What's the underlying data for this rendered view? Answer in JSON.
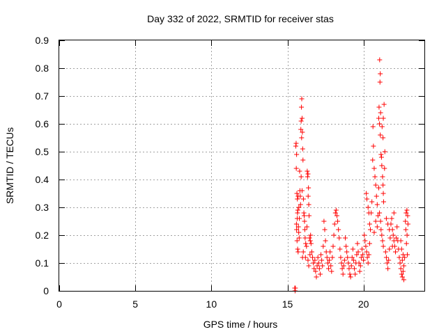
{
  "chart_data": {
    "type": "scatter",
    "title": "Day 332 of 2022, SRMTID for receiver stas",
    "xlabel": "GPS time / hours",
    "ylabel": "SRMTID / TECUs",
    "xlim": [
      0,
      24
    ],
    "ylim": [
      0,
      0.9
    ],
    "x_ticks": [
      0,
      5,
      10,
      15,
      20
    ],
    "x_tick_labels": [
      "0",
      "5",
      "10",
      "15",
      "20"
    ],
    "y_ticks": [
      0,
      0.1,
      0.2,
      0.3,
      0.4,
      0.5,
      0.6,
      0.7,
      0.8,
      0.9
    ],
    "y_tick_labels": [
      "0",
      "0.1",
      "0.2",
      "0.3",
      "0.4",
      "0.5",
      "0.6",
      "0.7",
      "0.8",
      "0.9"
    ],
    "grid": true,
    "marker": "+",
    "color": "#ff0000",
    "series": [
      {
        "name": "stas",
        "points": [
          [
            15.48,
            0.01
          ],
          [
            15.5,
            0.0
          ],
          [
            15.52,
            0.01
          ],
          [
            15.55,
            0.52
          ],
          [
            15.57,
            0.53
          ],
          [
            15.6,
            0.49
          ],
          [
            15.58,
            0.44
          ],
          [
            15.62,
            0.35
          ],
          [
            15.65,
            0.33
          ],
          [
            15.68,
            0.29
          ],
          [
            15.7,
            0.34
          ],
          [
            15.66,
            0.28
          ],
          [
            15.72,
            0.23
          ],
          [
            15.6,
            0.22
          ],
          [
            15.75,
            0.3
          ],
          [
            15.78,
            0.26
          ],
          [
            15.8,
            0.43
          ],
          [
            15.63,
            0.18
          ],
          [
            15.67,
            0.15
          ],
          [
            15.7,
            0.14
          ],
          [
            15.74,
            0.21
          ],
          [
            15.77,
            0.19
          ],
          [
            15.82,
            0.36
          ],
          [
            15.84,
            0.34
          ],
          [
            15.86,
            0.31
          ],
          [
            15.59,
            0.24
          ],
          [
            15.64,
            0.26
          ],
          [
            15.88,
            0.58
          ],
          [
            15.9,
            0.61
          ],
          [
            15.92,
            0.66
          ],
          [
            15.94,
            0.69
          ],
          [
            15.96,
            0.62
          ],
          [
            15.93,
            0.55
          ],
          [
            15.98,
            0.57
          ],
          [
            16.0,
            0.51
          ],
          [
            15.9,
            0.41
          ],
          [
            15.96,
            0.36
          ],
          [
            16.02,
            0.47
          ],
          [
            16.05,
            0.33
          ],
          [
            16.08,
            0.28
          ],
          [
            16.1,
            0.27
          ],
          [
            16.12,
            0.25
          ],
          [
            16.14,
            0.22
          ],
          [
            16.16,
            0.19
          ],
          [
            16.2,
            0.17
          ],
          [
            16.04,
            0.14
          ],
          [
            15.99,
            0.12
          ],
          [
            16.18,
            0.12
          ],
          [
            16.3,
            0.43
          ],
          [
            16.32,
            0.41
          ],
          [
            16.35,
            0.42
          ],
          [
            16.38,
            0.37
          ],
          [
            16.36,
            0.34
          ],
          [
            16.4,
            0.31
          ],
          [
            16.42,
            0.27
          ],
          [
            16.28,
            0.23
          ],
          [
            16.25,
            0.16
          ],
          [
            16.45,
            0.19
          ],
          [
            16.48,
            0.13
          ],
          [
            16.5,
            0.18
          ],
          [
            16.52,
            0.2
          ],
          [
            16.55,
            0.17
          ],
          [
            16.6,
            0.14
          ],
          [
            16.65,
            0.12
          ],
          [
            16.7,
            0.1
          ],
          [
            16.4,
            0.09
          ],
          [
            16.35,
            0.11
          ],
          [
            16.75,
            0.08
          ],
          [
            16.8,
            0.11
          ],
          [
            16.85,
            0.07
          ],
          [
            16.9,
            0.05
          ],
          [
            16.95,
            0.09
          ],
          [
            17.0,
            0.12
          ],
          [
            17.05,
            0.1
          ],
          [
            17.1,
            0.08
          ],
          [
            17.15,
            0.06
          ],
          [
            17.2,
            0.13
          ],
          [
            17.25,
            0.11
          ],
          [
            17.3,
            0.09
          ],
          [
            17.35,
            0.16
          ],
          [
            17.4,
            0.25
          ],
          [
            17.45,
            0.22
          ],
          [
            17.5,
            0.18
          ],
          [
            17.55,
            0.14
          ],
          [
            17.6,
            0.12
          ],
          [
            17.65,
            0.1
          ],
          [
            17.7,
            0.08
          ],
          [
            17.75,
            0.11
          ],
          [
            17.8,
            0.14
          ],
          [
            17.85,
            0.09
          ],
          [
            17.9,
            0.07
          ],
          [
            17.95,
            0.12
          ],
          [
            18.0,
            0.16
          ],
          [
            18.05,
            0.2
          ],
          [
            18.1,
            0.24
          ],
          [
            18.15,
            0.28
          ],
          [
            18.2,
            0.29
          ],
          [
            18.25,
            0.27
          ],
          [
            18.3,
            0.25
          ],
          [
            18.35,
            0.22
          ],
          [
            18.4,
            0.19
          ],
          [
            18.45,
            0.15
          ],
          [
            18.5,
            0.12
          ],
          [
            18.55,
            0.1
          ],
          [
            18.6,
            0.08
          ],
          [
            18.65,
            0.06
          ],
          [
            18.7,
            0.09
          ],
          [
            18.75,
            0.11
          ],
          [
            18.8,
            0.19
          ],
          [
            18.85,
            0.16
          ],
          [
            18.9,
            0.14
          ],
          [
            18.95,
            0.12
          ],
          [
            19.0,
            0.1
          ],
          [
            19.05,
            0.08
          ],
          [
            19.1,
            0.06
          ],
          [
            19.15,
            0.05
          ],
          [
            19.2,
            0.09
          ],
          [
            19.25,
            0.12
          ],
          [
            19.3,
            0.15
          ],
          [
            19.35,
            0.11
          ],
          [
            19.4,
            0.08
          ],
          [
            19.45,
            0.06
          ],
          [
            19.5,
            0.1
          ],
          [
            19.55,
            0.13
          ],
          [
            19.6,
            0.17
          ],
          [
            19.65,
            0.14
          ],
          [
            19.7,
            0.1
          ],
          [
            19.75,
            0.07
          ],
          [
            19.8,
            0.09
          ],
          [
            19.85,
            0.12
          ],
          [
            19.9,
            0.15
          ],
          [
            19.95,
            0.13
          ],
          [
            20.0,
            0.11
          ],
          [
            20.05,
            0.2
          ],
          [
            20.1,
            0.18
          ],
          [
            20.15,
            0.16
          ],
          [
            20.2,
            0.14
          ],
          [
            20.25,
            0.12
          ],
          [
            20.3,
            0.1
          ],
          [
            20.35,
            0.13
          ],
          [
            20.4,
            0.17
          ],
          [
            20.18,
            0.35
          ],
          [
            20.22,
            0.33
          ],
          [
            20.3,
            0.3
          ],
          [
            20.35,
            0.28
          ],
          [
            20.4,
            0.24
          ],
          [
            20.45,
            0.22
          ],
          [
            20.5,
            0.28
          ],
          [
            20.55,
            0.32
          ],
          [
            20.6,
            0.47
          ],
          [
            20.65,
            0.52
          ],
          [
            20.62,
            0.59
          ],
          [
            20.7,
            0.44
          ],
          [
            20.75,
            0.41
          ],
          [
            20.8,
            0.38
          ],
          [
            20.85,
            0.34
          ],
          [
            20.9,
            0.31
          ],
          [
            20.95,
            0.27
          ],
          [
            20.7,
            0.21
          ],
          [
            20.8,
            0.25
          ],
          [
            20.9,
            0.23
          ],
          [
            21.0,
            0.62
          ],
          [
            21.05,
            0.6
          ],
          [
            21.02,
            0.66
          ],
          [
            21.1,
            0.56
          ],
          [
            21.12,
            0.64
          ],
          [
            21.08,
            0.75
          ],
          [
            21.1,
            0.78
          ],
          [
            21.06,
            0.83
          ],
          [
            21.15,
            0.49
          ],
          [
            21.18,
            0.48
          ],
          [
            21.2,
            0.45
          ],
          [
            21.25,
            0.41
          ],
          [
            21.28,
            0.38
          ],
          [
            21.3,
            0.35
          ],
          [
            21.32,
            0.32
          ],
          [
            21.35,
            0.67
          ],
          [
            21.3,
            0.62
          ],
          [
            21.22,
            0.59
          ],
          [
            21.28,
            0.55
          ],
          [
            21.4,
            0.5
          ],
          [
            21.38,
            0.44
          ],
          [
            21.0,
            0.37
          ],
          [
            21.05,
            0.28
          ],
          [
            21.12,
            0.25
          ],
          [
            21.15,
            0.22
          ],
          [
            21.2,
            0.2
          ],
          [
            21.25,
            0.18
          ],
          [
            21.3,
            0.16
          ],
          [
            21.45,
            0.14
          ],
          [
            21.5,
            0.12
          ],
          [
            21.55,
            0.1
          ],
          [
            21.6,
            0.08
          ],
          [
            21.65,
            0.11
          ],
          [
            21.7,
            0.15
          ],
          [
            21.75,
            0.19
          ],
          [
            21.8,
            0.24
          ],
          [
            21.85,
            0.26
          ],
          [
            21.9,
            0.22
          ],
          [
            21.95,
            0.2
          ],
          [
            22.0,
            0.18
          ],
          [
            22.05,
            0.16
          ],
          [
            22.1,
            0.14
          ],
          [
            22.15,
            0.19
          ],
          [
            22.2,
            0.23
          ],
          [
            22.25,
            0.18
          ],
          [
            22.3,
            0.15
          ],
          [
            22.35,
            0.12
          ],
          [
            21.5,
            0.26
          ],
          [
            21.6,
            0.24
          ],
          [
            21.7,
            0.22
          ],
          [
            22.0,
            0.28
          ],
          [
            21.9,
            0.16
          ],
          [
            22.4,
            0.1
          ],
          [
            22.45,
            0.08
          ],
          [
            22.5,
            0.06
          ],
          [
            22.55,
            0.05
          ],
          [
            22.6,
            0.07
          ],
          [
            22.65,
            0.09
          ],
          [
            22.7,
            0.12
          ],
          [
            22.5,
            0.15
          ],
          [
            22.6,
            0.13
          ],
          [
            22.45,
            0.18
          ],
          [
            22.55,
            0.11
          ],
          [
            22.65,
            0.04
          ],
          [
            22.75,
            0.25
          ],
          [
            22.8,
            0.28
          ],
          [
            22.85,
            0.29
          ],
          [
            22.9,
            0.27
          ],
          [
            22.78,
            0.22
          ],
          [
            22.82,
            0.17
          ],
          [
            22.88,
            0.13
          ],
          [
            22.92,
            0.24
          ],
          [
            22.86,
            0.2
          ]
        ]
      }
    ]
  }
}
